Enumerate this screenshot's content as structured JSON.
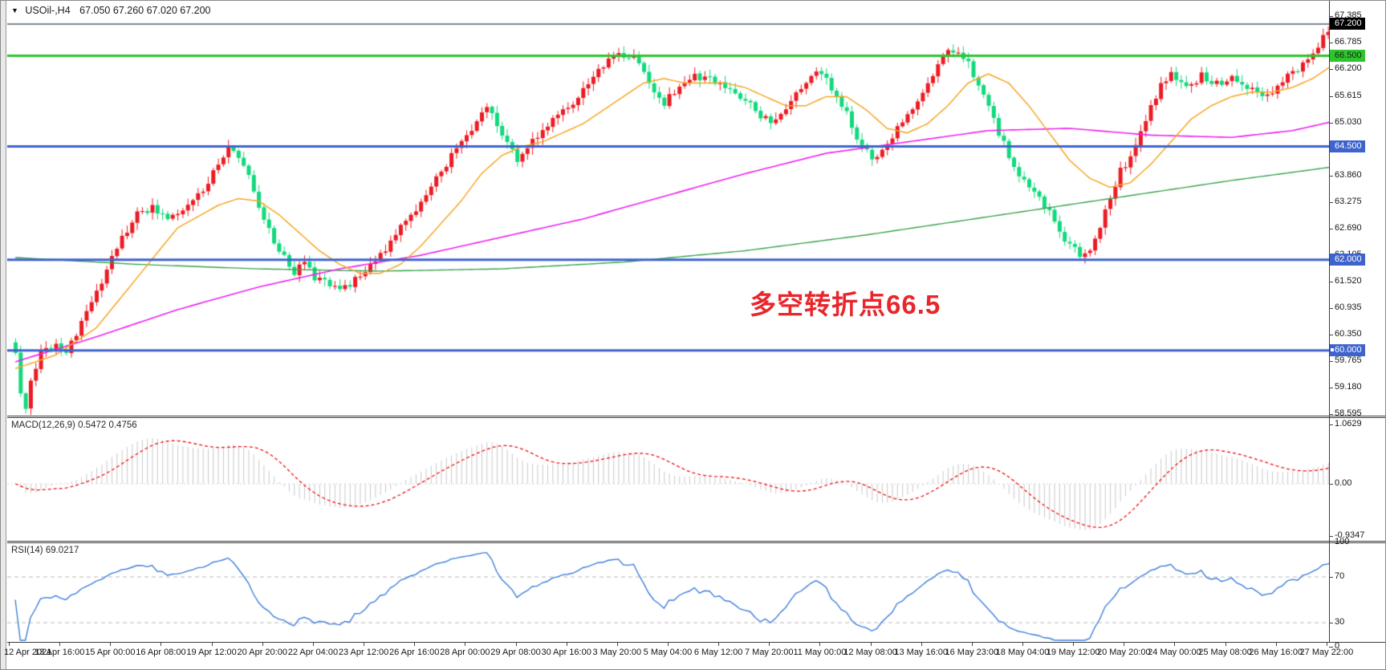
{
  "window": {
    "dropdown_icon": "▼",
    "symbol_title": "USOil-,H4",
    "ohlc_text": "67.050 67.260 67.020 67.200"
  },
  "annotation": {
    "text": "多空转折点66.5",
    "color": "#e8262b"
  },
  "colors": {
    "candle_up": "#ec1c24",
    "candle_down": "#12d97c",
    "ma_orange": "#f5a623",
    "ma_magenta": "#ee22ee",
    "ma_green": "#3aa24e",
    "hline_green": "#2fc42f",
    "hline_blue": "#3e63cd",
    "price_line_gray": "#7d8a98",
    "macd_hist": "#c9c9c9",
    "macd_signal": "#ee1111",
    "rsi_line": "#3d7edb",
    "rsi_levels": "#b8b8b8",
    "axis_text": "#161616"
  },
  "price_axis": {
    "ticks": [
      "67.385",
      "66.785",
      "66.200",
      "65.615",
      "65.030",
      "64.445",
      "63.860",
      "63.275",
      "62.690",
      "62.105",
      "61.520",
      "60.935",
      "60.350",
      "59.765",
      "59.180",
      "58.595"
    ],
    "tick_values": [
      67.385,
      66.785,
      66.2,
      65.615,
      65.03,
      64.445,
      63.86,
      63.275,
      62.69,
      62.105,
      61.52,
      60.935,
      60.35,
      59.765,
      59.18,
      58.595
    ],
    "badges": [
      {
        "label": "67.200",
        "price": 67.2,
        "bg": "#000000",
        "fg": "#ffffff",
        "marker": false
      },
      {
        "label": "66.500",
        "price": 66.5,
        "bg": "#2fc42f",
        "fg": "#0a2a0a",
        "marker": false
      },
      {
        "label": "64.500",
        "price": 64.5,
        "bg": "#3e63cd",
        "fg": "#ffffff",
        "marker": false
      },
      {
        "label": "62.000",
        "price": 62.0,
        "bg": "#3e63cd",
        "fg": "#ffffff",
        "marker": false
      },
      {
        "label": "60.000",
        "price": 60.0,
        "bg": "#3e63cd",
        "fg": "#ffffff",
        "marker": true
      }
    ]
  },
  "chart_data": {
    "type": "candlestick",
    "symbol": "USOil-",
    "timeframe": "H4",
    "bars": 261,
    "last_bar": {
      "open": 67.05,
      "high": 67.26,
      "low": 67.02,
      "close": 67.2
    },
    "last_price": "67.200",
    "horizontal_lines": [
      {
        "price": 67.2,
        "color_key": "price_line_gray",
        "width": 2
      },
      {
        "price": 66.5,
        "color_key": "hline_green",
        "width": 3
      },
      {
        "price": 64.5,
        "color_key": "hline_blue",
        "width": 3
      },
      {
        "price": 62.0,
        "color_key": "hline_blue",
        "width": 3
      },
      {
        "price": 60.0,
        "color_key": "hline_blue",
        "width": 3
      }
    ],
    "price_path_anchors": [
      [
        0,
        59.9
      ],
      [
        1,
        59.05
      ],
      [
        2,
        58.75
      ],
      [
        3,
        59.35
      ],
      [
        5,
        59.95
      ],
      [
        8,
        60.15
      ],
      [
        10,
        60.0
      ],
      [
        12,
        60.4
      ],
      [
        16,
        61.3
      ],
      [
        20,
        62.3
      ],
      [
        24,
        63.0
      ],
      [
        27,
        63.15
      ],
      [
        30,
        62.9
      ],
      [
        33,
        63.1
      ],
      [
        36,
        63.4
      ],
      [
        39,
        63.9
      ],
      [
        42,
        64.5
      ],
      [
        44,
        64.2
      ],
      [
        46,
        63.8
      ],
      [
        49,
        62.9
      ],
      [
        52,
        62.2
      ],
      [
        55,
        61.7
      ],
      [
        57,
        61.95
      ],
      [
        59,
        61.6
      ],
      [
        62,
        61.45
      ],
      [
        65,
        61.4
      ],
      [
        68,
        61.65
      ],
      [
        71,
        62.0
      ],
      [
        74,
        62.4
      ],
      [
        78,
        63.0
      ],
      [
        82,
        63.6
      ],
      [
        86,
        64.3
      ],
      [
        90,
        64.9
      ],
      [
        93,
        65.35
      ],
      [
        95,
        65.0
      ],
      [
        97,
        64.6
      ],
      [
        99,
        64.2
      ],
      [
        101,
        64.45
      ],
      [
        104,
        64.9
      ],
      [
        107,
        65.15
      ],
      [
        110,
        65.45
      ],
      [
        113,
        65.9
      ],
      [
        116,
        66.3
      ],
      [
        119,
        66.5
      ],
      [
        122,
        66.45
      ],
      [
        124,
        66.1
      ],
      [
        126,
        65.7
      ],
      [
        128,
        65.45
      ],
      [
        131,
        65.85
      ],
      [
        134,
        66.05
      ],
      [
        137,
        65.95
      ],
      [
        140,
        65.85
      ],
      [
        143,
        65.6
      ],
      [
        146,
        65.3
      ],
      [
        149,
        65.0
      ],
      [
        152,
        65.35
      ],
      [
        155,
        65.8
      ],
      [
        158,
        66.1
      ],
      [
        160,
        65.95
      ],
      [
        162,
        65.6
      ],
      [
        164,
        65.2
      ],
      [
        166,
        64.7
      ],
      [
        169,
        64.2
      ],
      [
        172,
        64.55
      ],
      [
        175,
        65.05
      ],
      [
        178,
        65.5
      ],
      [
        181,
        66.1
      ],
      [
        184,
        66.65
      ],
      [
        186,
        66.55
      ],
      [
        188,
        66.3
      ],
      [
        191,
        65.6
      ],
      [
        194,
        64.8
      ],
      [
        197,
        64.05
      ],
      [
        200,
        63.55
      ],
      [
        202,
        63.35
      ],
      [
        204,
        63.1
      ],
      [
        206,
        62.6
      ],
      [
        208,
        62.3
      ],
      [
        210,
        62.1
      ],
      [
        212,
        62.15
      ],
      [
        214,
        62.7
      ],
      [
        216,
        63.4
      ],
      [
        218,
        63.95
      ],
      [
        220,
        64.3
      ],
      [
        222,
        64.8
      ],
      [
        224,
        65.4
      ],
      [
        226,
        65.85
      ],
      [
        228,
        66.1
      ],
      [
        230,
        65.95
      ],
      [
        232,
        65.8
      ],
      [
        234,
        66.05
      ],
      [
        236,
        65.95
      ],
      [
        238,
        65.85
      ],
      [
        240,
        66.0
      ],
      [
        242,
        65.9
      ],
      [
        244,
        65.75
      ],
      [
        246,
        65.55
      ],
      [
        248,
        65.65
      ],
      [
        250,
        65.95
      ],
      [
        252,
        66.1
      ],
      [
        254,
        66.35
      ],
      [
        256,
        66.6
      ],
      [
        258,
        66.9
      ],
      [
        260,
        67.2
      ]
    ],
    "ma_orange_anchors": [
      [
        0,
        59.6
      ],
      [
        8,
        59.9
      ],
      [
        16,
        60.5
      ],
      [
        24,
        61.6
      ],
      [
        32,
        62.7
      ],
      [
        40,
        63.2
      ],
      [
        44,
        63.35
      ],
      [
        48,
        63.3
      ],
      [
        52,
        63.0
      ],
      [
        56,
        62.6
      ],
      [
        60,
        62.2
      ],
      [
        64,
        61.9
      ],
      [
        68,
        61.7
      ],
      [
        72,
        61.7
      ],
      [
        76,
        61.9
      ],
      [
        80,
        62.3
      ],
      [
        84,
        62.8
      ],
      [
        88,
        63.3
      ],
      [
        92,
        63.9
      ],
      [
        96,
        64.3
      ],
      [
        100,
        64.5
      ],
      [
        104,
        64.6
      ],
      [
        108,
        64.8
      ],
      [
        112,
        65.0
      ],
      [
        116,
        65.3
      ],
      [
        120,
        65.6
      ],
      [
        124,
        65.9
      ],
      [
        128,
        66.0
      ],
      [
        132,
        65.9
      ],
      [
        136,
        65.9
      ],
      [
        140,
        65.9
      ],
      [
        144,
        65.8
      ],
      [
        148,
        65.6
      ],
      [
        152,
        65.4
      ],
      [
        156,
        65.4
      ],
      [
        160,
        65.6
      ],
      [
        164,
        65.6
      ],
      [
        168,
        65.3
      ],
      [
        172,
        64.9
      ],
      [
        176,
        64.8
      ],
      [
        180,
        65.0
      ],
      [
        184,
        65.4
      ],
      [
        188,
        65.9
      ],
      [
        192,
        66.1
      ],
      [
        196,
        65.9
      ],
      [
        200,
        65.4
      ],
      [
        204,
        64.8
      ],
      [
        208,
        64.2
      ],
      [
        212,
        63.8
      ],
      [
        216,
        63.6
      ],
      [
        220,
        63.7
      ],
      [
        224,
        64.1
      ],
      [
        228,
        64.6
      ],
      [
        232,
        65.1
      ],
      [
        236,
        65.4
      ],
      [
        240,
        65.6
      ],
      [
        244,
        65.7
      ],
      [
        248,
        65.7
      ],
      [
        252,
        65.8
      ],
      [
        256,
        66.0
      ],
      [
        260,
        66.3
      ]
    ],
    "ma_magenta_anchors": [
      [
        0,
        59.75
      ],
      [
        16,
        60.3
      ],
      [
        32,
        60.9
      ],
      [
        48,
        61.4
      ],
      [
        64,
        61.8
      ],
      [
        80,
        62.1
      ],
      [
        96,
        62.5
      ],
      [
        112,
        62.9
      ],
      [
        128,
        63.4
      ],
      [
        144,
        63.9
      ],
      [
        160,
        64.35
      ],
      [
        176,
        64.6
      ],
      [
        192,
        64.85
      ],
      [
        208,
        64.9
      ],
      [
        224,
        64.75
      ],
      [
        240,
        64.7
      ],
      [
        252,
        64.85
      ],
      [
        260,
        65.05
      ]
    ],
    "ma_green_anchors": [
      [
        0,
        62.05
      ],
      [
        24,
        61.9
      ],
      [
        48,
        61.8
      ],
      [
        72,
        61.75
      ],
      [
        96,
        61.8
      ],
      [
        120,
        61.95
      ],
      [
        144,
        62.2
      ],
      [
        168,
        62.55
      ],
      [
        192,
        62.95
      ],
      [
        216,
        63.35
      ],
      [
        240,
        63.75
      ],
      [
        260,
        64.05
      ]
    ],
    "x_labels": [
      "12 Apr 2021",
      "13 Apr 16:00",
      "15 Apr 00:00",
      "16 Apr 08:00",
      "19 Apr 12:00",
      "20 Apr 20:00",
      "22 Apr 04:00",
      "23 Apr 12:00",
      "26 Apr 16:00",
      "28 Apr 00:00",
      "29 Apr 08:00",
      "30 Apr 16:00",
      "3 May 20:00",
      "5 May 04:00",
      "6 May 12:00",
      "7 May 20:00",
      "11 May 00:00",
      "12 May 08:00",
      "13 May 16:00",
      "16 May 23:00",
      "18 May 04:00",
      "19 May 12:00",
      "20 May 20:00",
      "24 May 00:00",
      "25 May 08:00",
      "26 May 16:00",
      "27 May 22:00"
    ],
    "bars_per_label": 10,
    "indicators": [
      {
        "name": "MACD",
        "label": "MACD(12,26,9) 0.5472 0.4756",
        "params": [
          12,
          26,
          9
        ],
        "axis_ticks": [
          "1.0629",
          "0.00",
          "-0.9347"
        ],
        "axis_tick_values": [
          1.0629,
          0.0,
          -0.9347
        ]
      },
      {
        "name": "RSI",
        "label": "RSI(14) 69.0217",
        "period": 14,
        "axis_ticks": [
          "100",
          "70",
          "30",
          "0"
        ],
        "axis_tick_values": [
          100,
          70,
          30,
          0
        ],
        "levels": [
          70,
          30
        ]
      }
    ]
  }
}
